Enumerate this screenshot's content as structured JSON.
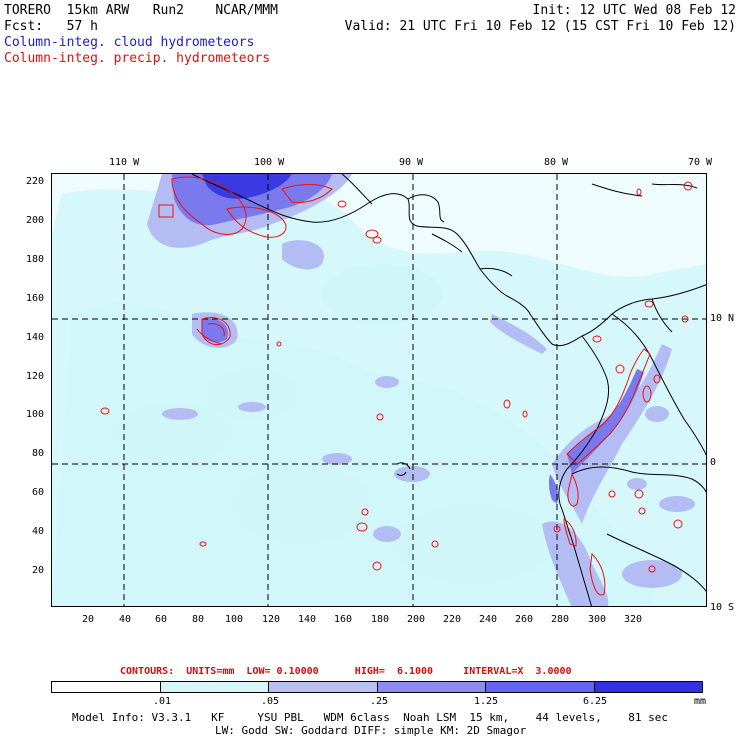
{
  "header": {
    "line1_left": "TORERO  15km ARW   Run2    NCAR/MMM",
    "line1_right": "Init: 12 UTC Wed 08 Feb 12",
    "line2_left": "Fcst:   57 h",
    "line2_right": "Valid: 21 UTC Fri 10 Feb 12 (15 CST Fri 10 Feb 12)",
    "field1": "Column-integ. cloud hydrometeors",
    "field2": "Column-integ. precip. hydrometeors"
  },
  "colors": {
    "field1": "#1a1ad8",
    "field2": "#e01010",
    "ocean_light": "#e6fafc",
    "shade_1": "#c8f4f8",
    "shade_2": "#b8c0f4",
    "shade_3": "#8c8cf0",
    "shade_4": "#6464ec",
    "shade_5": "#2020e0",
    "contour": "#ee1111",
    "coast": "#000000"
  },
  "axes": {
    "top_lon_labels": [
      "110 W",
      "100 W",
      "90 W",
      "80 W",
      "70 W"
    ],
    "right_lat_labels": [
      "10 N",
      "0",
      "10 S"
    ],
    "left_y_ticks": [
      "220",
      "200",
      "180",
      "160",
      "140",
      "120",
      "100",
      "80",
      "60",
      "40",
      "20"
    ],
    "bottom_x_ticks": [
      "20",
      "40",
      "60",
      "80",
      "100",
      "120",
      "140",
      "160",
      "180",
      "200",
      "220",
      "240",
      "260",
      "280",
      "300",
      "320"
    ]
  },
  "contours_text": "CONTOURS:  UNITS=mm  LOW= 0.10000      HIGH=  6.1000     INTERVAL=X  3.0000",
  "colorbar": {
    "labels": [
      ".01",
      ".05",
      ".25",
      "1.25",
      "6.25"
    ],
    "unit": "mm",
    "colors": [
      "#ffffff",
      "#d6f6fa",
      "#b8c0f4",
      "#8c8cf0",
      "#6464ec",
      "#3030e4"
    ]
  },
  "model_info": {
    "line1": "Model Info: V3.3.1   KF     YSU PBL   WDM 6class  Noah LSM  15 km,    44 levels,    81 sec",
    "line2": "LW: Godd SW: Goddard DIFF: simple KM: 2D Smagor"
  }
}
